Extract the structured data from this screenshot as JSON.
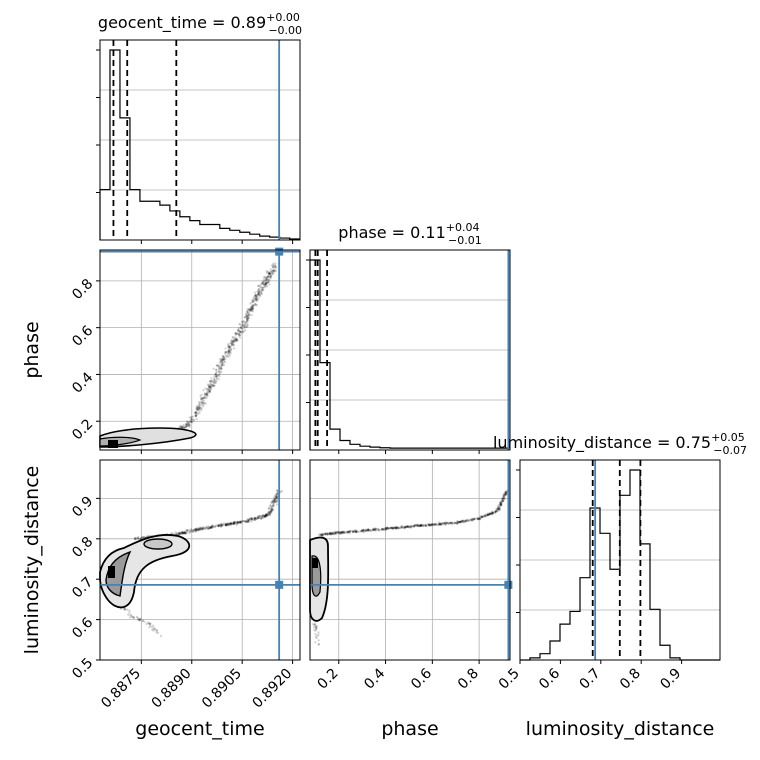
{
  "chart_data": {
    "type": "corner",
    "parameters": [
      "geocent_time",
      "phase",
      "luminosity_distance"
    ],
    "truth": {
      "geocent_time": 0.8916,
      "phase": 0.925,
      "luminosity_distance": 0.686
    },
    "truth_color": "#4682b4",
    "titles": [
      {
        "name": "geocent_time",
        "value": "0.89",
        "plus": "+0.00",
        "minus": "−0.00"
      },
      {
        "name": "phase",
        "value": "0.11",
        "plus": "+0.04",
        "minus": "−0.01"
      },
      {
        "name": "luminosity_distance",
        "value": "0.75",
        "plus": "+0.05",
        "minus": "−0.07"
      }
    ],
    "xlabels": [
      "geocent_time",
      "phase",
      "luminosity_distance"
    ],
    "ylabels": {
      "phase": "phase",
      "luminosity_distance": "luminosity_distance"
    },
    "ranges": {
      "geocent_time": [
        0.88627,
        0.89222
      ],
      "phase": [
        0.077,
        0.932
      ],
      "luminosity_distance": [
        0.5,
        0.995
      ]
    },
    "ticks": {
      "geocent_time": [
        "0.8875",
        "0.8890",
        "0.8905",
        "0.8920"
      ],
      "phase": [
        "0.2",
        "0.4",
        "0.6",
        "0.8"
      ],
      "luminosity_distance_x": [
        "0.5",
        "0.6",
        "0.7",
        "0.8",
        "0.9"
      ],
      "luminosity_distance_y": [
        "0.5",
        "0.6",
        "0.7",
        "0.8",
        "0.9"
      ]
    },
    "hist_geocent_time": {
      "edges_start": 0.88627,
      "bin_width": 0.000297,
      "heights": [
        0.26,
        0.98,
        0.63,
        0.26,
        0.2,
        0.2,
        0.18,
        0.15,
        0.12,
        0.1,
        0.08,
        0.08,
        0.06,
        0.05,
        0.04,
        0.03,
        0.02,
        0.015,
        0.01,
        0.005
      ],
      "quantiles": [
        0.88667,
        0.88708,
        0.88854
      ]
    },
    "hist_phase": {
      "edges_start": 0.077,
      "bin_width": 0.04275,
      "heights": [
        1.0,
        0.46,
        0.11,
        0.05,
        0.03,
        0.02,
        0.015,
        0.012,
        0.01,
        0.01,
        0.01,
        0.01,
        0.01,
        0.01,
        0.01,
        0.01,
        0.01,
        0.01,
        0.01,
        0.01
      ],
      "quantiles": [
        0.1,
        0.11,
        0.15
      ]
    },
    "hist_luminosity_distance": {
      "edges_start": 0.5,
      "bin_width": 0.02475,
      "heights": [
        0.0,
        0.01,
        0.03,
        0.09,
        0.17,
        0.23,
        0.39,
        0.72,
        0.6,
        0.43,
        0.78,
        0.9,
        0.55,
        0.24,
        0.07,
        0.01,
        0.0,
        0.0,
        0.0,
        0.0
      ],
      "quantiles": [
        0.68,
        0.747,
        0.798
      ]
    },
    "scatter_geocent_phase": {
      "curve_x": [
        0.8872,
        0.8882,
        0.8886,
        0.8889,
        0.8892,
        0.8894,
        0.8897,
        0.8899,
        0.8902,
        0.8905,
        0.8907,
        0.8909,
        0.8911,
        0.8913,
        0.8915
      ],
      "curve_y": [
        0.12,
        0.14,
        0.16,
        0.19,
        0.25,
        0.31,
        0.38,
        0.45,
        0.53,
        0.6,
        0.66,
        0.72,
        0.77,
        0.82,
        0.87
      ]
    },
    "scatter_geocent_distance": {
      "curve_x": [
        0.8873,
        0.8885,
        0.8893,
        0.89,
        0.8907,
        0.8913,
        0.8916
      ],
      "curve_y": [
        0.8,
        0.81,
        0.825,
        0.835,
        0.845,
        0.86,
        0.92
      ],
      "tail_x": [
        0.8868,
        0.8872,
        0.8877,
        0.8881
      ],
      "tail_y": [
        0.64,
        0.61,
        0.59,
        0.56
      ]
    },
    "scatter_phase_distance": {
      "curve_x": [
        0.12,
        0.2,
        0.3,
        0.4,
        0.5,
        0.6,
        0.7,
        0.8,
        0.88,
        0.92
      ],
      "curve_y": [
        0.81,
        0.815,
        0.82,
        0.825,
        0.83,
        0.835,
        0.84,
        0.85,
        0.87,
        0.92
      ],
      "tail_x": [
        0.09,
        0.095,
        0.1,
        0.11
      ],
      "tail_y": [
        0.66,
        0.62,
        0.58,
        0.54
      ]
    }
  }
}
